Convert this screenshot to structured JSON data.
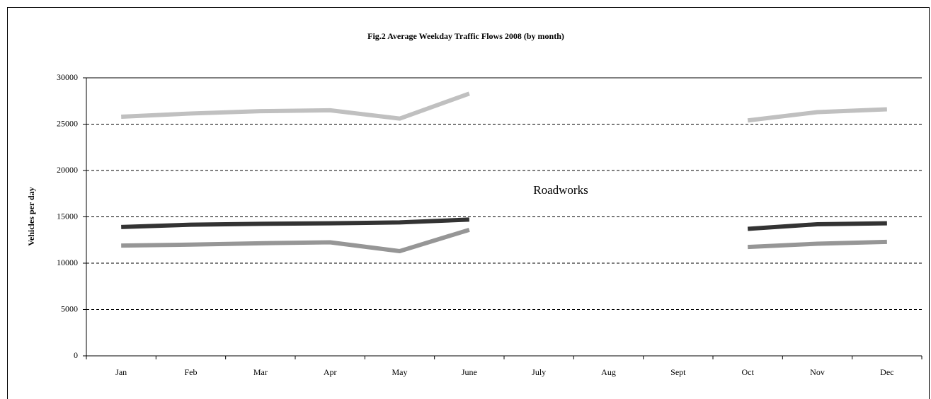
{
  "chart_data": {
    "type": "line",
    "title": "Fig.2 Average Weekday Traffic Flows 2008 (by month)",
    "y_label": "Vehicles per day",
    "annotation": "Roadworks",
    "categories": [
      "Jan",
      "Feb",
      "Mar",
      "Apr",
      "May",
      "June",
      "July",
      "Aug",
      "Sept",
      "Oct",
      "Nov",
      "Dec"
    ],
    "series": [
      {
        "color": "#c0c0c0",
        "values": [
          25800,
          26150,
          26400,
          26500,
          25600,
          28300,
          null,
          null,
          null,
          25400,
          26300,
          26600
        ]
      },
      {
        "color": "#333333",
        "values": [
          13900,
          14150,
          14250,
          14300,
          14400,
          14700,
          null,
          null,
          null,
          13700,
          14200,
          14300
        ]
      },
      {
        "color": "#969696",
        "values": [
          11900,
          12000,
          12150,
          12250,
          11300,
          13600,
          null,
          null,
          null,
          11750,
          12100,
          12300
        ]
      }
    ],
    "ylim": [
      0,
      30000
    ],
    "yticks": [
      0,
      5000,
      10000,
      15000,
      20000,
      25000,
      30000
    ],
    "grid": true
  }
}
